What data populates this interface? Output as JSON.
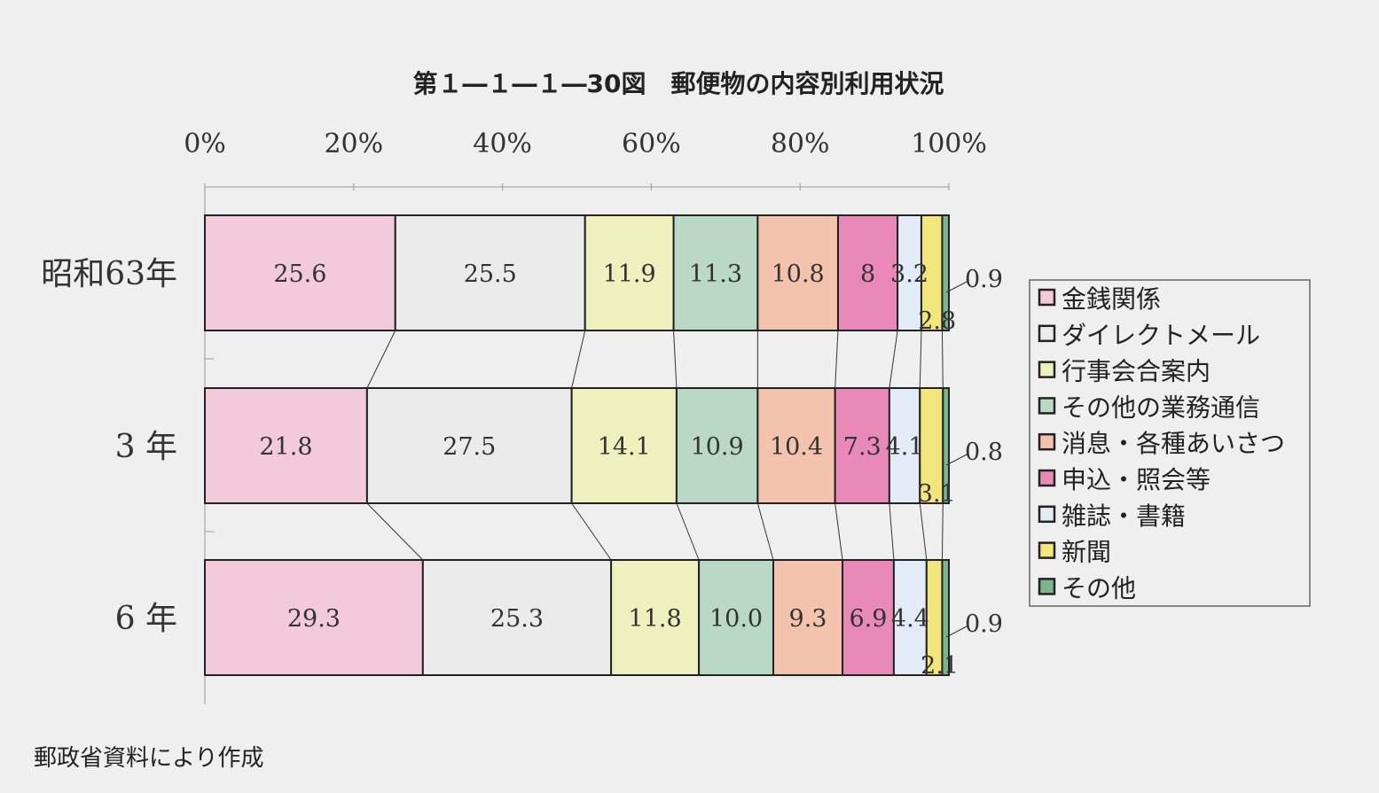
{
  "title": "第１―１―１―30図　郵便物の内容別利用状況",
  "source": "郵政省資料により作成",
  "colors": {
    "background": "#efefef",
    "outline": "#222222"
  },
  "chart_data": {
    "type": "bar",
    "orientation": "horizontal",
    "stacked": "percent",
    "categories": [
      "昭和63年",
      "3 年",
      "6 年"
    ],
    "x_ticks": [
      "0%",
      "20%",
      "40%",
      "60%",
      "80%",
      "100%"
    ],
    "xlim": [
      0,
      100
    ],
    "legend_position": "right",
    "series": [
      {
        "name": "金銭関係",
        "values": [
          25.6,
          21.8,
          29.3
        ],
        "labels": [
          "25.6",
          "21.8",
          "29.3"
        ],
        "color": "#f2cadb"
      },
      {
        "name": "ダイレクトメール",
        "values": [
          25.5,
          27.5,
          25.3
        ],
        "labels": [
          "25.5",
          "27.5",
          "25.3"
        ],
        "color": "#ebebeb"
      },
      {
        "name": "行事会合案内",
        "values": [
          11.9,
          14.1,
          11.8
        ],
        "labels": [
          "11.9",
          "14.1",
          "11.8"
        ],
        "color": "#eef0be"
      },
      {
        "name": "その他の業務通信",
        "values": [
          11.3,
          10.9,
          10.0
        ],
        "labels": [
          "11.3",
          "10.9",
          "10.0"
        ],
        "color": "#b9d8c6"
      },
      {
        "name": "消息・各種あいさつ",
        "values": [
          10.8,
          10.4,
          9.3
        ],
        "labels": [
          "10.8",
          "10.4",
          "9.3"
        ],
        "color": "#f4c3ad"
      },
      {
        "name": "申込・照会等",
        "values": [
          8,
          7.3,
          6.9
        ],
        "labels": [
          "8",
          "7.3",
          "6.9"
        ],
        "color": "#e989b8"
      },
      {
        "name": "雑誌・書籍",
        "values": [
          3.2,
          4.1,
          4.4
        ],
        "labels": [
          "3.2",
          "4.1",
          "4.4"
        ],
        "color": "#e3ecf6"
      },
      {
        "name": "新聞",
        "values": [
          2.8,
          3.1,
          2.1
        ],
        "labels": [
          "2.8",
          "3.1",
          "2.1"
        ],
        "color": "#f2e57e"
      },
      {
        "name": "その他",
        "values": [
          0.9,
          0.8,
          0.9
        ],
        "labels": [
          "0.9",
          "0.8",
          "0.9"
        ],
        "color": "#7cb58c"
      }
    ]
  }
}
